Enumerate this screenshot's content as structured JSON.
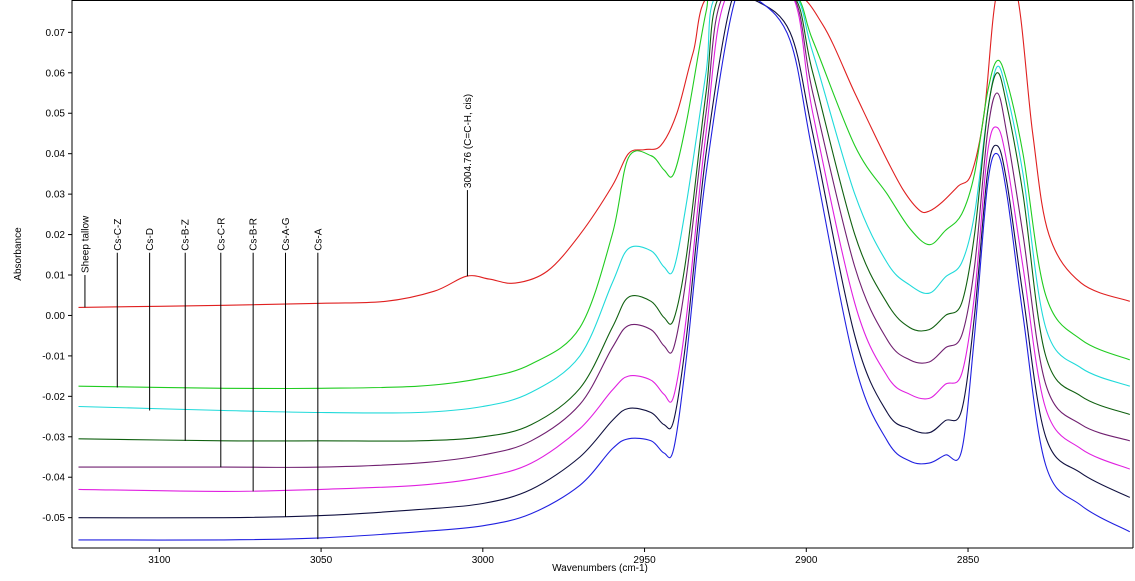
{
  "chart_data": {
    "type": "line",
    "xlabel": "Wavenumbers (cm-1)",
    "ylabel": "Absorbance",
    "xlim": [
      3127,
      2799
    ],
    "ylim": [
      -0.0575,
      0.078
    ],
    "x_reversed": true,
    "grid": false,
    "x_ticks": [
      3100,
      3050,
      3000,
      2950,
      2900,
      2850
    ],
    "y_ticks": [
      -0.05,
      -0.04,
      -0.03,
      -0.02,
      -0.01,
      0.0,
      0.01,
      0.02,
      0.03,
      0.04,
      0.05,
      0.06,
      0.07
    ],
    "x_tick_labels": [
      "3100",
      "3050",
      "3000",
      "2950",
      "2900",
      "2850"
    ],
    "y_tick_labels": [
      "-0.05",
      "-0.04",
      "-0.03",
      "-0.02",
      "-0.01",
      "0.00",
      "0.01",
      "0.02",
      "0.03",
      "0.04",
      "0.05",
      "0.06",
      "0.07"
    ],
    "series": [
      {
        "name": "Sheep tallow",
        "color": "#e02020",
        "points": [
          [
            3125,
            0.002
          ],
          [
            3080,
            0.0025
          ],
          [
            3050,
            0.003
          ],
          [
            3030,
            0.0035
          ],
          [
            3015,
            0.006
          ],
          [
            3005,
            0.0097
          ],
          [
            2998,
            0.009
          ],
          [
            2990,
            0.008
          ],
          [
            2980,
            0.011
          ],
          [
            2970,
            0.02
          ],
          [
            2960,
            0.032
          ],
          [
            2955,
            0.04
          ],
          [
            2950,
            0.041
          ],
          [
            2945,
            0.042
          ],
          [
            2940,
            0.05
          ],
          [
            2935,
            0.065
          ],
          [
            2929,
            0.08
          ],
          [
            2905,
            0.08
          ],
          [
            2895,
            0.072
          ],
          [
            2885,
            0.055
          ],
          [
            2876,
            0.04
          ],
          [
            2870,
            0.031
          ],
          [
            2865,
            0.026
          ],
          [
            2862,
            0.0258
          ],
          [
            2858,
            0.028
          ],
          [
            2853,
            0.032
          ],
          [
            2849,
            0.035
          ],
          [
            2845,
            0.05
          ],
          [
            2841,
            0.08
          ],
          [
            2835,
            0.08
          ],
          [
            2830,
            0.045
          ],
          [
            2825,
            0.02
          ],
          [
            2815,
            0.008
          ],
          [
            2800,
            0.0035
          ]
        ]
      },
      {
        "name": "Cs-C-Z",
        "color": "#20cc20",
        "points": [
          [
            3125,
            -0.0175
          ],
          [
            3080,
            -0.018
          ],
          [
            3050,
            -0.018
          ],
          [
            3020,
            -0.0175
          ],
          [
            3000,
            -0.0155
          ],
          [
            2985,
            -0.012
          ],
          [
            2970,
            -0.003
          ],
          [
            2960,
            0.02
          ],
          [
            2955,
            0.039
          ],
          [
            2948,
            0.0395
          ],
          [
            2944,
            0.036
          ],
          [
            2941,
            0.035
          ],
          [
            2937,
            0.048
          ],
          [
            2931,
            0.075
          ],
          [
            2928,
            0.08
          ],
          [
            2905,
            0.08
          ],
          [
            2898,
            0.068
          ],
          [
            2885,
            0.042
          ],
          [
            2875,
            0.03
          ],
          [
            2868,
            0.0215
          ],
          [
            2862,
            0.0175
          ],
          [
            2857,
            0.021
          ],
          [
            2852,
            0.025
          ],
          [
            2848,
            0.035
          ],
          [
            2844,
            0.055
          ],
          [
            2841,
            0.063
          ],
          [
            2838,
            0.058
          ],
          [
            2833,
            0.04
          ],
          [
            2826,
            0.005
          ],
          [
            2815,
            -0.006
          ],
          [
            2800,
            -0.011
          ]
        ]
      },
      {
        "name": "Cs-D",
        "color": "#20dada",
        "points": [
          [
            3125,
            -0.0225
          ],
          [
            3080,
            -0.0235
          ],
          [
            3050,
            -0.024
          ],
          [
            3020,
            -0.024
          ],
          [
            3000,
            -0.0225
          ],
          [
            2985,
            -0.019
          ],
          [
            2970,
            -0.01
          ],
          [
            2960,
            0.008
          ],
          [
            2955,
            0.0165
          ],
          [
            2948,
            0.016
          ],
          [
            2944,
            0.012
          ],
          [
            2941,
            0.0115
          ],
          [
            2937,
            0.028
          ],
          [
            2931,
            0.06
          ],
          [
            2927,
            0.08
          ],
          [
            2905,
            0.08
          ],
          [
            2898,
            0.065
          ],
          [
            2885,
            0.03
          ],
          [
            2875,
            0.013
          ],
          [
            2868,
            0.0075
          ],
          [
            2862,
            0.0055
          ],
          [
            2857,
            0.0095
          ],
          [
            2852,
            0.013
          ],
          [
            2848,
            0.025
          ],
          [
            2844,
            0.05
          ],
          [
            2841,
            0.0615
          ],
          [
            2838,
            0.055
          ],
          [
            2833,
            0.035
          ],
          [
            2826,
            -0.003
          ],
          [
            2815,
            -0.013
          ],
          [
            2800,
            -0.0175
          ]
        ]
      },
      {
        "name": "Cs-B-Z",
        "color": "#106010",
        "points": [
          [
            3125,
            -0.0305
          ],
          [
            3080,
            -0.031
          ],
          [
            3050,
            -0.031
          ],
          [
            3020,
            -0.031
          ],
          [
            3000,
            -0.03
          ],
          [
            2985,
            -0.027
          ],
          [
            2970,
            -0.018
          ],
          [
            2960,
            -0.003
          ],
          [
            2955,
            0.0045
          ],
          [
            2948,
            0.0035
          ],
          [
            2944,
            -0.0005
          ],
          [
            2941,
            -0.001
          ],
          [
            2937,
            0.015
          ],
          [
            2931,
            0.055
          ],
          [
            2926,
            0.08
          ],
          [
            2905,
            0.08
          ],
          [
            2898,
            0.06
          ],
          [
            2885,
            0.02
          ],
          [
            2875,
            0.003
          ],
          [
            2868,
            -0.003
          ],
          [
            2862,
            -0.0035
          ],
          [
            2857,
            0.0
          ],
          [
            2852,
            0.003
          ],
          [
            2848,
            0.02
          ],
          [
            2844,
            0.05
          ],
          [
            2841,
            0.06
          ],
          [
            2838,
            0.052
          ],
          [
            2833,
            0.03
          ],
          [
            2826,
            -0.01
          ],
          [
            2815,
            -0.02
          ],
          [
            2800,
            -0.0245
          ]
        ]
      },
      {
        "name": "Cs-C-R",
        "color": "#702070",
        "points": [
          [
            3125,
            -0.0375
          ],
          [
            3080,
            -0.0375
          ],
          [
            3050,
            -0.0375
          ],
          [
            3020,
            -0.0365
          ],
          [
            3000,
            -0.0345
          ],
          [
            2985,
            -0.031
          ],
          [
            2970,
            -0.022
          ],
          [
            2960,
            -0.008
          ],
          [
            2955,
            -0.0025
          ],
          [
            2948,
            -0.0035
          ],
          [
            2944,
            -0.0075
          ],
          [
            2941,
            -0.008
          ],
          [
            2937,
            0.01
          ],
          [
            2931,
            0.05
          ],
          [
            2925,
            0.08
          ],
          [
            2905,
            0.08
          ],
          [
            2898,
            0.055
          ],
          [
            2885,
            0.012
          ],
          [
            2875,
            -0.006
          ],
          [
            2868,
            -0.011
          ],
          [
            2862,
            -0.0115
          ],
          [
            2857,
            -0.008
          ],
          [
            2852,
            -0.005
          ],
          [
            2848,
            0.012
          ],
          [
            2844,
            0.045
          ],
          [
            2841,
            0.055
          ],
          [
            2838,
            0.045
          ],
          [
            2833,
            0.02
          ],
          [
            2826,
            -0.017
          ],
          [
            2815,
            -0.027
          ],
          [
            2800,
            -0.031
          ]
        ]
      },
      {
        "name": "Cs-B-R",
        "color": "#e020e0",
        "points": [
          [
            3125,
            -0.043
          ],
          [
            3080,
            -0.0435
          ],
          [
            3050,
            -0.043
          ],
          [
            3020,
            -0.042
          ],
          [
            3000,
            -0.04
          ],
          [
            2985,
            -0.0365
          ],
          [
            2970,
            -0.028
          ],
          [
            2960,
            -0.0185
          ],
          [
            2955,
            -0.015
          ],
          [
            2948,
            -0.016
          ],
          [
            2944,
            -0.0195
          ],
          [
            2941,
            -0.02
          ],
          [
            2937,
            0.0
          ],
          [
            2931,
            0.045
          ],
          [
            2924,
            0.08
          ],
          [
            2905,
            0.08
          ],
          [
            2898,
            0.05
          ],
          [
            2885,
            0.003
          ],
          [
            2875,
            -0.015
          ],
          [
            2868,
            -0.0195
          ],
          [
            2862,
            -0.0205
          ],
          [
            2857,
            -0.017
          ],
          [
            2852,
            -0.0145
          ],
          [
            2848,
            0.005
          ],
          [
            2844,
            0.04
          ],
          [
            2841,
            0.0465
          ],
          [
            2838,
            0.038
          ],
          [
            2833,
            0.012
          ],
          [
            2826,
            -0.023
          ],
          [
            2815,
            -0.033
          ],
          [
            2800,
            -0.038
          ]
        ]
      },
      {
        "name": "Cs-A-G",
        "color": "#101040",
        "points": [
          [
            3125,
            -0.05
          ],
          [
            3080,
            -0.05
          ],
          [
            3050,
            -0.0495
          ],
          [
            3020,
            -0.048
          ],
          [
            3000,
            -0.0465
          ],
          [
            2985,
            -0.043
          ],
          [
            2970,
            -0.035
          ],
          [
            2960,
            -0.026
          ],
          [
            2955,
            -0.023
          ],
          [
            2948,
            -0.024
          ],
          [
            2944,
            -0.027
          ],
          [
            2941,
            -0.026
          ],
          [
            2937,
            -0.005
          ],
          [
            2931,
            0.04
          ],
          [
            2923,
            0.078
          ],
          [
            2916,
            0.078
          ],
          [
            2905,
            0.07
          ],
          [
            2898,
            0.045
          ],
          [
            2885,
            -0.005
          ],
          [
            2875,
            -0.024
          ],
          [
            2868,
            -0.028
          ],
          [
            2862,
            -0.029
          ],
          [
            2857,
            -0.026
          ],
          [
            2852,
            -0.0235
          ],
          [
            2848,
            0.0
          ],
          [
            2844,
            0.035
          ],
          [
            2841,
            0.042
          ],
          [
            2838,
            0.033
          ],
          [
            2833,
            0.005
          ],
          [
            2826,
            -0.03
          ],
          [
            2815,
            -0.039
          ],
          [
            2800,
            -0.045
          ]
        ]
      },
      {
        "name": "Cs-A",
        "color": "#2020e0",
        "points": [
          [
            3125,
            -0.0555
          ],
          [
            3080,
            -0.0555
          ],
          [
            3050,
            -0.055
          ],
          [
            3020,
            -0.0535
          ],
          [
            3000,
            -0.052
          ],
          [
            2985,
            -0.049
          ],
          [
            2970,
            -0.042
          ],
          [
            2960,
            -0.033
          ],
          [
            2955,
            -0.0305
          ],
          [
            2948,
            -0.031
          ],
          [
            2944,
            -0.034
          ],
          [
            2941,
            -0.033
          ],
          [
            2937,
            -0.01
          ],
          [
            2931,
            0.035
          ],
          [
            2922,
            0.078
          ],
          [
            2915,
            0.078
          ],
          [
            2905,
            0.068
          ],
          [
            2898,
            0.04
          ],
          [
            2885,
            -0.012
          ],
          [
            2875,
            -0.031
          ],
          [
            2868,
            -0.036
          ],
          [
            2862,
            -0.0365
          ],
          [
            2857,
            -0.0345
          ],
          [
            2852,
            -0.0335
          ],
          [
            2848,
            -0.005
          ],
          [
            2844,
            0.032
          ],
          [
            2841,
            0.04
          ],
          [
            2838,
            0.03
          ],
          [
            2833,
            0.0
          ],
          [
            2826,
            -0.037
          ],
          [
            2815,
            -0.047
          ],
          [
            2800,
            -0.0535
          ]
        ]
      }
    ],
    "annotations": [
      {
        "label": "Sheep tallow",
        "x": 3123,
        "y_start": 0.002,
        "y_end": 0.01
      },
      {
        "label": "Cs-C-Z",
        "x": 3113,
        "y_start": -0.0178,
        "y_end": 0.0155
      },
      {
        "label": "Cs-D",
        "x": 3103,
        "y_start": -0.0235,
        "y_end": 0.0155
      },
      {
        "label": "Cs-B-Z",
        "x": 3092,
        "y_start": -0.031,
        "y_end": 0.0155
      },
      {
        "label": "Cs-C-R",
        "x": 3081,
        "y_start": -0.0375,
        "y_end": 0.0155
      },
      {
        "label": "Cs-B-R",
        "x": 3071,
        "y_start": -0.0435,
        "y_end": 0.0155
      },
      {
        "label": "Cs-A-G",
        "x": 3061,
        "y_start": -0.0498,
        "y_end": 0.0155
      },
      {
        "label": "Cs-A",
        "x": 3051,
        "y_start": -0.0553,
        "y_end": 0.0155
      },
      {
        "label": "3004.76 (C=C-H, cis)",
        "x": 3004.76,
        "y_start": 0.0097,
        "y_end": 0.031
      }
    ]
  }
}
